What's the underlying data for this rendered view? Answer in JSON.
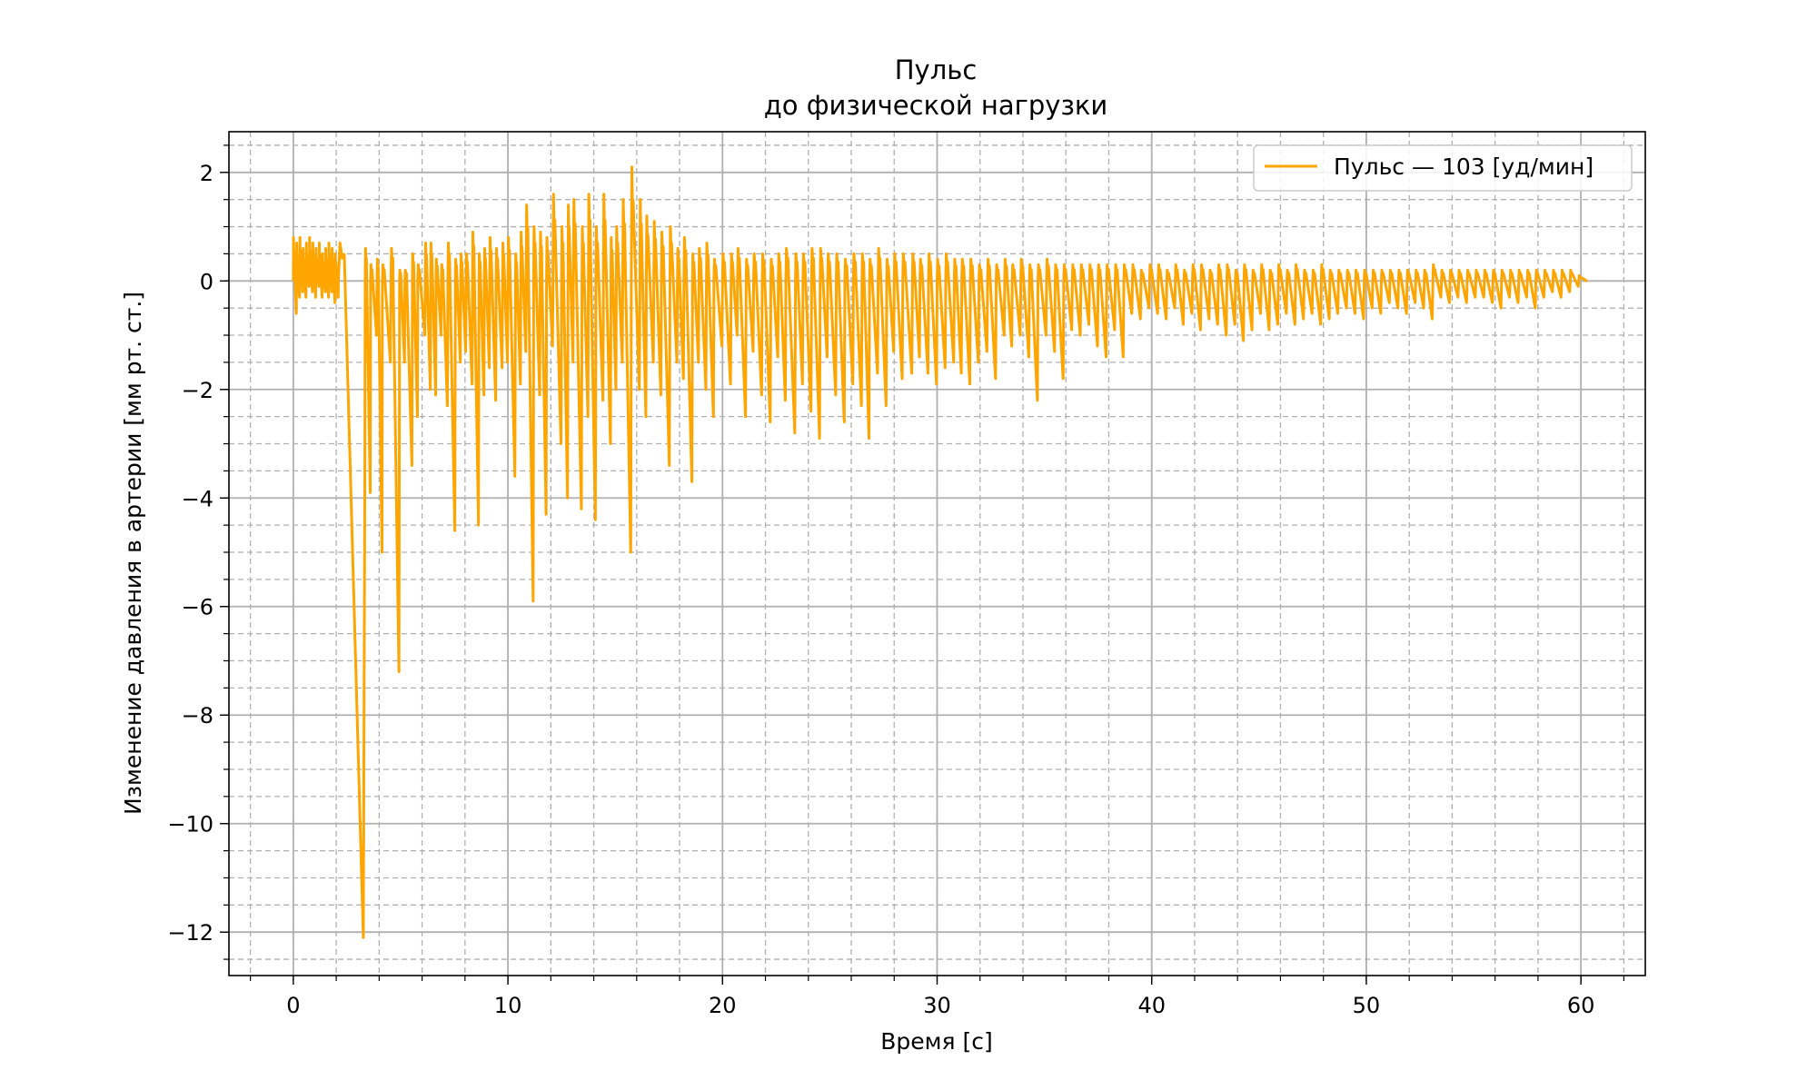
{
  "chart_data": {
    "type": "line",
    "title_line1": "Пульс",
    "title_line2": "до физической нагрузки",
    "xlabel": "Время [с]",
    "ylabel": "Изменение давления в артерии [мм рт. ст.]",
    "xlim": [
      -3,
      63
    ],
    "ylim": [
      -12.8,
      2.75
    ],
    "x_ticks": [
      0,
      10,
      20,
      30,
      40,
      50,
      60
    ],
    "x_tick_labels": [
      "0",
      "10",
      "20",
      "30",
      "40",
      "50",
      "60"
    ],
    "y_ticks": [
      2,
      0,
      -2,
      -4,
      -6,
      -8,
      -10,
      -12
    ],
    "y_tick_labels": [
      "2",
      "0",
      "−2",
      "−4",
      "−6",
      "−8",
      "−10",
      "−12"
    ],
    "x_minor_step": 2,
    "y_minor_step": 0.5,
    "grid": true,
    "legend_position": "upper right",
    "series": [
      {
        "name": "Пульс — 103 [уд/мин]",
        "color": "#ffa500",
        "beats": [
          [
            0.0,
            0.8,
            -0.6
          ],
          [
            0.15,
            0.7,
            -0.3
          ],
          [
            0.3,
            0.8,
            -0.2
          ],
          [
            0.45,
            0.6,
            -0.3
          ],
          [
            0.6,
            0.7,
            -0.1
          ],
          [
            0.75,
            0.8,
            -0.2
          ],
          [
            0.9,
            0.7,
            -0.3
          ],
          [
            1.05,
            0.6,
            -0.1
          ],
          [
            1.2,
            0.7,
            -0.3
          ],
          [
            1.35,
            0.5,
            -0.2
          ],
          [
            1.5,
            0.6,
            -0.3
          ],
          [
            1.65,
            0.7,
            -0.2
          ],
          [
            1.8,
            0.6,
            -0.4
          ],
          [
            1.95,
            0.5,
            -0.3
          ],
          [
            2.1,
            0.7,
            -12.1
          ],
          [
            3.35,
            0.6,
            -3.9
          ],
          [
            3.6,
            0.3,
            -1.0
          ],
          [
            3.9,
            0.4,
            -5.0
          ],
          [
            4.15,
            0.3,
            -1.5
          ],
          [
            4.55,
            0.6,
            -7.2
          ],
          [
            4.95,
            0.2,
            -1.5
          ],
          [
            5.2,
            0.2,
            -3.4
          ],
          [
            5.55,
            0.5,
            -2.5
          ],
          [
            5.8,
            0.3,
            -1.0
          ],
          [
            6.15,
            0.7,
            -2.0
          ],
          [
            6.4,
            0.7,
            -2.1
          ],
          [
            6.65,
            0.4,
            -1.0
          ],
          [
            6.9,
            0.3,
            -2.3
          ],
          [
            7.2,
            0.7,
            -4.6
          ],
          [
            7.55,
            0.4,
            -1.5
          ],
          [
            7.8,
            0.5,
            -1.3
          ],
          [
            8.05,
            0.5,
            -1.9
          ],
          [
            8.35,
            0.9,
            -4.5
          ],
          [
            8.65,
            0.5,
            -2.1
          ],
          [
            8.9,
            0.6,
            -1.6
          ],
          [
            9.15,
            0.8,
            -2.2
          ],
          [
            9.45,
            0.6,
            -1.6
          ],
          [
            9.75,
            0.7,
            -1.5
          ],
          [
            10.0,
            0.8,
            -3.6
          ],
          [
            10.35,
            0.5,
            -1.9
          ],
          [
            10.6,
            0.9,
            -1.3
          ],
          [
            10.85,
            1.4,
            -5.9
          ],
          [
            11.2,
            1.0,
            -2.1
          ],
          [
            11.5,
            0.9,
            -4.3
          ],
          [
            11.8,
            0.8,
            -1.2
          ],
          [
            12.1,
            1.6,
            -3.0
          ],
          [
            12.5,
            1.0,
            -4.0
          ],
          [
            12.8,
            1.4,
            -1.5
          ],
          [
            13.05,
            1.5,
            -4.2
          ],
          [
            13.45,
            1.0,
            -2.5
          ],
          [
            13.75,
            1.6,
            -4.4
          ],
          [
            14.1,
            1.0,
            -2.2
          ],
          [
            14.45,
            1.6,
            -3.0
          ],
          [
            14.8,
            0.8,
            -2.0
          ],
          [
            15.05,
            1.0,
            -1.5
          ],
          [
            15.35,
            1.5,
            -5.0
          ],
          [
            15.75,
            2.1,
            -2.0
          ],
          [
            16.15,
            1.5,
            -2.5
          ],
          [
            16.45,
            1.2,
            -1.5
          ],
          [
            16.8,
            1.1,
            -2.1
          ],
          [
            17.15,
            0.9,
            -3.4
          ],
          [
            17.55,
            1.0,
            -1.5
          ],
          [
            17.9,
            0.6,
            -1.8
          ],
          [
            18.2,
            0.8,
            -3.7
          ],
          [
            18.6,
            0.5,
            -1.5
          ],
          [
            18.9,
            0.6,
            -2.0
          ],
          [
            19.25,
            0.7,
            -2.5
          ],
          [
            19.6,
            0.4,
            -1.2
          ],
          [
            20.0,
            0.5,
            -1.9
          ],
          [
            20.4,
            0.5,
            -1.0
          ],
          [
            20.7,
            0.6,
            -2.5
          ],
          [
            21.1,
            0.4,
            -1.3
          ],
          [
            21.45,
            0.5,
            -2.1
          ],
          [
            21.85,
            0.5,
            -2.6
          ],
          [
            22.25,
            0.4,
            -1.4
          ],
          [
            22.6,
            0.5,
            -2.2
          ],
          [
            22.95,
            0.6,
            -2.8
          ],
          [
            23.4,
            0.5,
            -1.9
          ],
          [
            23.75,
            0.5,
            -2.4
          ],
          [
            24.15,
            0.6,
            -2.9
          ],
          [
            24.55,
            0.6,
            -1.4
          ],
          [
            24.9,
            0.5,
            -2.1
          ],
          [
            25.3,
            0.5,
            -2.6
          ],
          [
            25.7,
            0.4,
            -1.9
          ],
          [
            26.1,
            0.5,
            -2.3
          ],
          [
            26.5,
            0.5,
            -2.9
          ],
          [
            26.85,
            0.4,
            -1.7
          ],
          [
            27.25,
            0.6,
            -2.3
          ],
          [
            27.65,
            0.4,
            -1.3
          ],
          [
            28.0,
            0.5,
            -1.8
          ],
          [
            28.4,
            0.5,
            -1.7
          ],
          [
            28.85,
            0.5,
            -1.4
          ],
          [
            29.2,
            0.4,
            -1.7
          ],
          [
            29.6,
            0.5,
            -1.9
          ],
          [
            30.0,
            0.4,
            -1.6
          ],
          [
            30.4,
            0.5,
            -1.5
          ],
          [
            30.8,
            0.4,
            -1.7
          ],
          [
            31.15,
            0.4,
            -1.9
          ],
          [
            31.55,
            0.4,
            -1.5
          ],
          [
            31.95,
            0.3,
            -1.3
          ],
          [
            32.35,
            0.4,
            -1.8
          ],
          [
            32.75,
            0.3,
            -1.0
          ],
          [
            33.15,
            0.4,
            -1.2
          ],
          [
            33.5,
            0.3,
            -1.0
          ],
          [
            33.9,
            0.4,
            -1.4
          ],
          [
            34.3,
            0.3,
            -2.2
          ],
          [
            34.7,
            0.3,
            -1.0
          ],
          [
            35.1,
            0.4,
            -1.3
          ],
          [
            35.5,
            0.3,
            -1.8
          ],
          [
            35.9,
            0.3,
            -0.9
          ],
          [
            36.3,
            0.3,
            -1.0
          ],
          [
            36.7,
            0.3,
            -0.8
          ],
          [
            37.1,
            0.3,
            -1.2
          ],
          [
            37.5,
            0.3,
            -1.4
          ],
          [
            37.9,
            0.3,
            -0.9
          ],
          [
            38.3,
            0.3,
            -1.4
          ],
          [
            38.7,
            0.3,
            -0.6
          ],
          [
            39.1,
            0.3,
            -0.7
          ],
          [
            39.5,
            0.2,
            -0.5
          ],
          [
            39.9,
            0.3,
            -0.6
          ],
          [
            40.3,
            0.3,
            -0.7
          ],
          [
            40.7,
            0.2,
            -0.5
          ],
          [
            41.1,
            0.3,
            -0.8
          ],
          [
            41.5,
            0.2,
            -0.6
          ],
          [
            41.9,
            0.3,
            -0.9
          ],
          [
            42.3,
            0.3,
            -0.7
          ],
          [
            42.7,
            0.2,
            -0.8
          ],
          [
            43.1,
            0.3,
            -1.0
          ],
          [
            43.5,
            0.3,
            -0.8
          ],
          [
            43.9,
            0.2,
            -1.1
          ],
          [
            44.3,
            0.3,
            -0.9
          ],
          [
            44.7,
            0.2,
            -0.6
          ],
          [
            45.1,
            0.3,
            -0.9
          ],
          [
            45.5,
            0.2,
            -0.8
          ],
          [
            45.9,
            0.3,
            -0.6
          ],
          [
            46.3,
            0.2,
            -0.8
          ],
          [
            46.7,
            0.3,
            -0.7
          ],
          [
            47.1,
            0.2,
            -0.6
          ],
          [
            47.5,
            0.2,
            -0.8
          ],
          [
            47.9,
            0.3,
            -0.7
          ],
          [
            48.3,
            0.2,
            -0.6
          ],
          [
            48.7,
            0.2,
            -0.5
          ],
          [
            49.1,
            0.2,
            -0.6
          ],
          [
            49.5,
            0.2,
            -0.7
          ],
          [
            49.9,
            0.2,
            -0.5
          ],
          [
            50.3,
            0.2,
            -0.6
          ],
          [
            50.7,
            0.2,
            -0.4
          ],
          [
            51.1,
            0.2,
            -0.5
          ],
          [
            51.5,
            0.2,
            -0.6
          ],
          [
            51.9,
            0.2,
            -0.4
          ],
          [
            52.3,
            0.2,
            -0.5
          ],
          [
            52.7,
            0.2,
            -0.7
          ],
          [
            53.1,
            0.3,
            -0.3
          ],
          [
            53.5,
            0.2,
            -0.4
          ],
          [
            53.9,
            0.2,
            -0.3
          ],
          [
            54.3,
            0.2,
            -0.4
          ],
          [
            54.7,
            0.2,
            -0.3
          ],
          [
            55.1,
            0.2,
            -0.3
          ],
          [
            55.5,
            0.2,
            -0.4
          ],
          [
            55.9,
            0.2,
            -0.5
          ],
          [
            56.3,
            0.2,
            -0.3
          ],
          [
            56.7,
            0.2,
            -0.4
          ],
          [
            57.1,
            0.2,
            -0.3
          ],
          [
            57.5,
            0.2,
            -0.5
          ],
          [
            57.9,
            0.2,
            -0.3
          ],
          [
            58.3,
            0.2,
            -0.2
          ],
          [
            58.7,
            0.2,
            -0.3
          ],
          [
            59.1,
            0.2,
            -0.2
          ],
          [
            59.5,
            0.2,
            -0.1
          ],
          [
            59.9,
            0.1,
            0.0
          ]
        ]
      }
    ]
  }
}
